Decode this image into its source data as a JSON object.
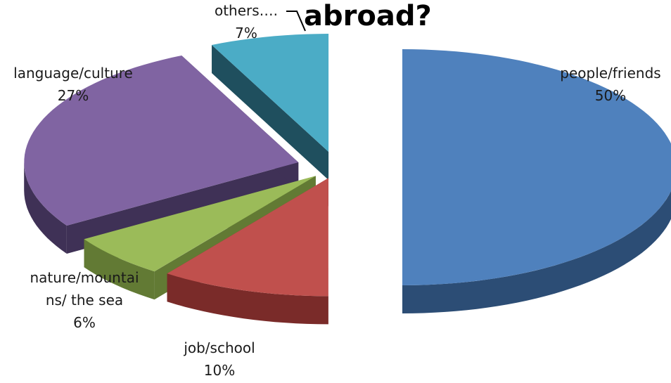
{
  "chart_data": {
    "type": "pie",
    "title": "abroad?",
    "slices": [
      {
        "label": "people/friends",
        "value": 50,
        "display": "50%",
        "top_color": "#4f81bd",
        "side_color": "#2c4d75"
      },
      {
        "label": "job/school",
        "value": 10,
        "display": "10%",
        "top_color": "#c0504d",
        "side_color": "#7a2b29"
      },
      {
        "label": "nature/mountai",
        "label2": "ns/ the sea",
        "value": 6,
        "display": "6%",
        "top_color": "#9bbb59",
        "side_color": "#627a34"
      },
      {
        "label": "language/culture",
        "value": 27,
        "display": "27%",
        "top_color": "#8064a2",
        "side_color": "#3f3156"
      },
      {
        "label": "others….",
        "value": 7,
        "display": "7%",
        "top_color": "#4bacc6",
        "side_color": "#1f4f5e"
      }
    ],
    "exploded": true,
    "three_d": true
  }
}
